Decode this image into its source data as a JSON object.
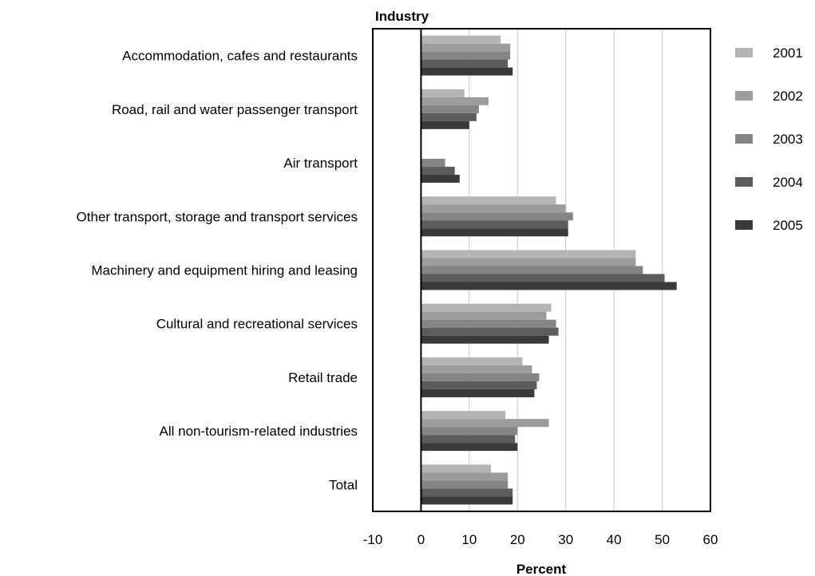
{
  "chart_data": {
    "type": "bar",
    "orientation": "horizontal",
    "title": "",
    "ylabel": "Industry",
    "xlabel": "Percent",
    "xlim": [
      -10,
      60
    ],
    "xticks": [
      -10,
      0,
      10,
      20,
      30,
      40,
      50,
      60
    ],
    "grid": true,
    "legend_position": "right",
    "categories": [
      "Accommodation, cafes and restaurants",
      "Road, rail and water passenger transport",
      "Air transport",
      "Other transport, storage and transport services",
      "Machinery and equipment hiring and leasing",
      "Cultural and recreational services",
      "Retail trade",
      "All non-tourism-related industries",
      "Total"
    ],
    "series": [
      {
        "name": "2001",
        "color": "#b4b4b4",
        "values": [
          16.5,
          9,
          0,
          28,
          44.5,
          27,
          21,
          17.5,
          14.5
        ]
      },
      {
        "name": "2002",
        "color": "#9c9c9c",
        "values": [
          18.5,
          14,
          0,
          30,
          44.5,
          26,
          23,
          26.5,
          18
        ]
      },
      {
        "name": "2003",
        "color": "#858585",
        "values": [
          18.5,
          12,
          5,
          31.5,
          46,
          28,
          24.5,
          20,
          18
        ]
      },
      {
        "name": "2004",
        "color": "#5c5c5c",
        "values": [
          18,
          11.5,
          7,
          30.5,
          50.5,
          28.5,
          24,
          19.5,
          19
        ]
      },
      {
        "name": "2005",
        "color": "#3a3a3a",
        "values": [
          19,
          10,
          8,
          30.5,
          53,
          26.5,
          23.5,
          20,
          19
        ]
      }
    ]
  }
}
